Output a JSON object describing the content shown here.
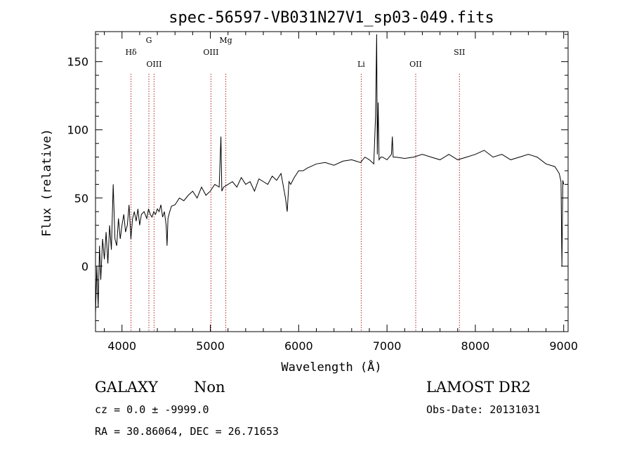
{
  "chart_data": {
    "type": "line",
    "title": "spec-56597-VB031N27V1_sp03-049.fits",
    "xlabel": "Wavelength (Å)",
    "ylabel": "Flux (relative)",
    "xlim": [
      3700,
      9050
    ],
    "ylim": [
      -48,
      172
    ],
    "x_ticks": [
      4000,
      5000,
      6000,
      7000,
      8000,
      9000
    ],
    "y_ticks": [
      0,
      50,
      100,
      150
    ],
    "x_tick_labels": [
      "4000",
      "5000",
      "6000",
      "7000",
      "8000",
      "9000"
    ],
    "y_tick_labels": [
      "0",
      "50",
      "100",
      "150"
    ],
    "grid": false,
    "series": [
      {
        "x": [
          3700,
          3715,
          3730,
          3745,
          3760,
          3780,
          3800,
          3820,
          3840,
          3860,
          3880,
          3900,
          3920,
          3940,
          3960,
          3980,
          4000,
          4020,
          4040,
          4060,
          4080,
          4101,
          4120,
          4140,
          4160,
          4180,
          4200,
          4220,
          4250,
          4280,
          4300,
          4320,
          4340,
          4360,
          4380,
          4400,
          4420,
          4440,
          4460,
          4480,
          4500,
          4510,
          4520,
          4540,
          4560,
          4600,
          4650,
          4700,
          4750,
          4800,
          4850,
          4900,
          4950,
          5000,
          5050,
          5100,
          5120,
          5130,
          5150,
          5200,
          5250,
          5300,
          5350,
          5400,
          5450,
          5500,
          5550,
          5600,
          5650,
          5700,
          5750,
          5800,
          5850,
          5870,
          5890,
          5910,
          5950,
          6000,
          6050,
          6100,
          6200,
          6300,
          6400,
          6500,
          6600,
          6700,
          6750,
          6800,
          6850,
          6870,
          6883,
          6890,
          6900,
          6910,
          6930,
          6950,
          7000,
          7050,
          7060,
          7070,
          7100,
          7200,
          7300,
          7400,
          7500,
          7600,
          7700,
          7800,
          7900,
          8000,
          8100,
          8200,
          8300,
          8400,
          8500,
          8600,
          8700,
          8800,
          8900,
          8950,
          8970,
          8980,
          8990,
          9000
        ],
        "y": [
          -35,
          0,
          -30,
          15,
          -10,
          20,
          5,
          25,
          2,
          30,
          12,
          60,
          20,
          15,
          35,
          20,
          30,
          38,
          25,
          30,
          45,
          20,
          35,
          40,
          33,
          42,
          30,
          38,
          40,
          35,
          42,
          38,
          36,
          40,
          38,
          42,
          40,
          45,
          36,
          40,
          30,
          15,
          35,
          40,
          44,
          45,
          50,
          48,
          52,
          55,
          50,
          58,
          52,
          55,
          60,
          58,
          95,
          55,
          58,
          60,
          62,
          58,
          65,
          60,
          62,
          55,
          64,
          62,
          60,
          66,
          63,
          68,
          50,
          40,
          62,
          60,
          65,
          70,
          70,
          72,
          75,
          76,
          74,
          77,
          78,
          76,
          80,
          78,
          75,
          110,
          170,
          82,
          120,
          78,
          80,
          80,
          78,
          82,
          95,
          80,
          80,
          79,
          80,
          82,
          80,
          78,
          82,
          78,
          80,
          82,
          85,
          80,
          82,
          78,
          80,
          82,
          80,
          75,
          73,
          68,
          62,
          0,
          63,
          60
        ]
      }
    ],
    "line_markers": [
      {
        "name": "Hδ",
        "x": 4102,
        "label_level": 2
      },
      {
        "name": "G",
        "x": 4304,
        "label_level": 1
      },
      {
        "name": "OIII",
        "x": 4363,
        "label_level": 3
      },
      {
        "name": "OIII",
        "x": 5007,
        "label_level": 2
      },
      {
        "name": "Mg",
        "x": 5175,
        "label_level": 1
      },
      {
        "name": "Li",
        "x": 6708,
        "label_level": 3
      },
      {
        "name": "OII",
        "x": 7325,
        "label_level": 3
      },
      {
        "name": "SII",
        "x": 7820,
        "label_level": 2
      }
    ],
    "marker_color": "#b0282c",
    "line_color": "#000000"
  },
  "footer": {
    "class_label": "GALAXY",
    "subclass_label": "Non",
    "survey_label": "LAMOST DR2",
    "cz_text": "cz = 0.0 ± -9999.0",
    "obs_date_text": "Obs-Date: 20131031",
    "coords_text": "RA =  30.86064, DEC =  26.71653"
  }
}
